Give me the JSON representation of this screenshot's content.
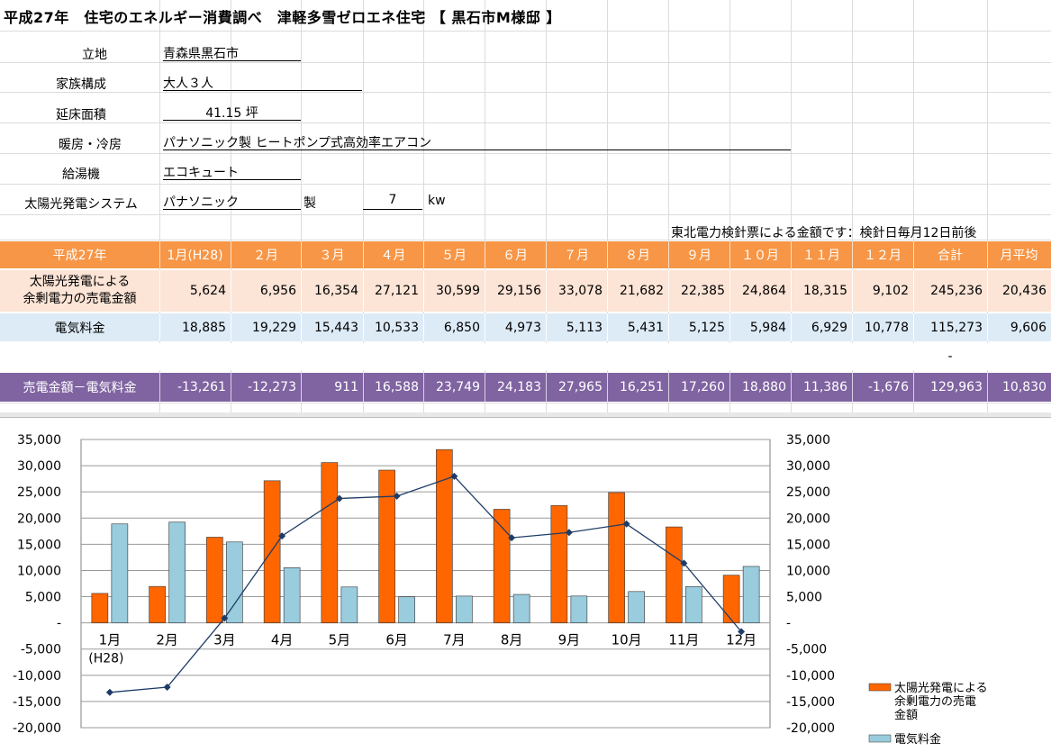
{
  "title": "平成27年　住宅のエネルギー消費調べ　津軽多雪ゼロエネ住宅 【 黒石市M様邸 】",
  "info": {
    "location_label": "立地",
    "location_value": "青森県黒石市",
    "family_label": "家族構成",
    "family_value": "大人３人",
    "area_label": "延床面積",
    "area_value": "41.15 坪",
    "hvac_label": "暖房・冷房",
    "hvac_value": "パナソニック製  ヒートポンプ式高効率エアコン",
    "water_label": "給湯機",
    "water_value": "エコキュート",
    "solar_label": "太陽光発電システム",
    "solar_maker": "パナソニック",
    "solar_made": "製",
    "solar_kw": "7",
    "solar_unit": "kw"
  },
  "note": "東北電力検針票による金額です：検針日毎月12日前後",
  "table": {
    "header": [
      "平成27年",
      "1月(H28)",
      "２月",
      "３月",
      "４月",
      "５月",
      "６月",
      "７月",
      "８月",
      "９月",
      "１０月",
      "１１月",
      "１２月",
      "合計",
      "月平均"
    ],
    "rows": [
      {
        "label_line1": "太陽光発電による",
        "label_line2": "余剰電力の売電金額",
        "values": [
          "5,624",
          "6,956",
          "16,354",
          "27,121",
          "30,599",
          "29,156",
          "33,078",
          "21,682",
          "22,385",
          "24,864",
          "18,315",
          "9,102",
          "245,236",
          "20,436"
        ]
      },
      {
        "label": "電気料金",
        "values": [
          "18,885",
          "19,229",
          "15,443",
          "10,533",
          "6,850",
          "4,973",
          "5,113",
          "5,431",
          "5,125",
          "5,984",
          "6,929",
          "10,778",
          "115,273",
          "9,606"
        ]
      },
      {
        "blank_marker": "-"
      },
      {
        "label": "売電金額－電気料金",
        "values": [
          "-13,261",
          "-12,273",
          "911",
          "16,588",
          "23,749",
          "24,183",
          "27,965",
          "16,251",
          "17,260",
          "18,880",
          "11,386",
          "-1,676",
          "129,963",
          "10,830"
        ]
      }
    ]
  },
  "chart_data": {
    "type": "bar",
    "categories": [
      "1月\n(H28)",
      "2月",
      "3月",
      "4月",
      "5月",
      "6月",
      "7月",
      "8月",
      "9月",
      "10月",
      "11月",
      "12月"
    ],
    "series": [
      {
        "name": "太陽光発電による余剰電力の売電金額",
        "kind": "bar",
        "color": "#FF6600",
        "values": [
          5624,
          6956,
          16354,
          27121,
          30599,
          29156,
          33078,
          21682,
          22385,
          24864,
          18315,
          9102
        ]
      },
      {
        "name": "電気料金",
        "kind": "bar",
        "color": "#99CCDD",
        "values": [
          18885,
          19229,
          15443,
          10533,
          6850,
          4973,
          5113,
          5431,
          5125,
          5984,
          6929,
          10778
        ]
      },
      {
        "name": "売電金額－電気料金",
        "kind": "line",
        "color": "#1F3C66",
        "values": [
          -13261,
          -12273,
          911,
          16588,
          23749,
          24183,
          27965,
          16251,
          17260,
          18880,
          11386,
          -1676
        ]
      }
    ],
    "ylim": [
      -20000,
      35000
    ],
    "yticks": [
      "35,000",
      "30,000",
      "25,000",
      "20,000",
      "15,000",
      "10,000",
      "5,000",
      "-",
      "-5,000",
      "-10,000",
      "-15,000",
      "-20,000"
    ],
    "grid": true,
    "legend_position": "bottom-right",
    "legend": [
      "太陽光発電による余剰電力の売電金額",
      "電気料金"
    ]
  },
  "colors": {
    "header_orange": "#F79646",
    "row_peach": "#FCE4D6",
    "row_blue": "#DDEBF7",
    "row_purple": "#8064A2"
  }
}
